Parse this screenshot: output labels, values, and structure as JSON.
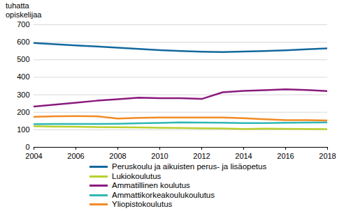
{
  "chart_data": {
    "type": "line",
    "y_label": "tuhatta\nopiskelijaa",
    "x": [
      2004,
      2005,
      2006,
      2007,
      2008,
      2009,
      2010,
      2011,
      2012,
      2013,
      2014,
      2015,
      2016,
      2017,
      2018
    ],
    "series": [
      {
        "name": "Peruskoulu ja aikuisten perus- ja lisäopetus",
        "color": "#13699e",
        "values": [
          596,
          589,
          582,
          576,
          569,
          562,
          555,
          550,
          546,
          544,
          547,
          550,
          554,
          560,
          565
        ]
      },
      {
        "name": "Lukiokoulutus",
        "color": "#b9cf2d",
        "values": [
          120,
          118,
          117,
          115,
          114,
          113,
          111,
          110,
          108,
          107,
          104,
          106,
          105,
          104,
          103
        ]
      },
      {
        "name": "Ammatillinen koulutus",
        "color": "#8b1a7c",
        "values": [
          233,
          244,
          255,
          266,
          274,
          283,
          280,
          280,
          276,
          314,
          322,
          326,
          331,
          327,
          321
        ]
      },
      {
        "name": "Ammattikorkeakoulukoulutus",
        "color": "#2fb8b3",
        "values": [
          132,
          133,
          133,
          133,
          134,
          137,
          139,
          142,
          141,
          140,
          138,
          138,
          140,
          141,
          142
        ]
      },
      {
        "name": "Yliopistokoulutus",
        "color": "#f28a25",
        "values": [
          174,
          177,
          178,
          177,
          164,
          168,
          170,
          170,
          170,
          170,
          166,
          160,
          155,
          155,
          153
        ]
      }
    ],
    "xlim": [
      2004,
      2018
    ],
    "xticks": [
      2004,
      2006,
      2008,
      2010,
      2012,
      2014,
      2016,
      2018
    ],
    "ylim": [
      0,
      700
    ],
    "yticks": [
      0,
      100,
      200,
      300,
      400,
      500,
      600,
      700
    ],
    "grid": true,
    "legend": "bottom"
  }
}
